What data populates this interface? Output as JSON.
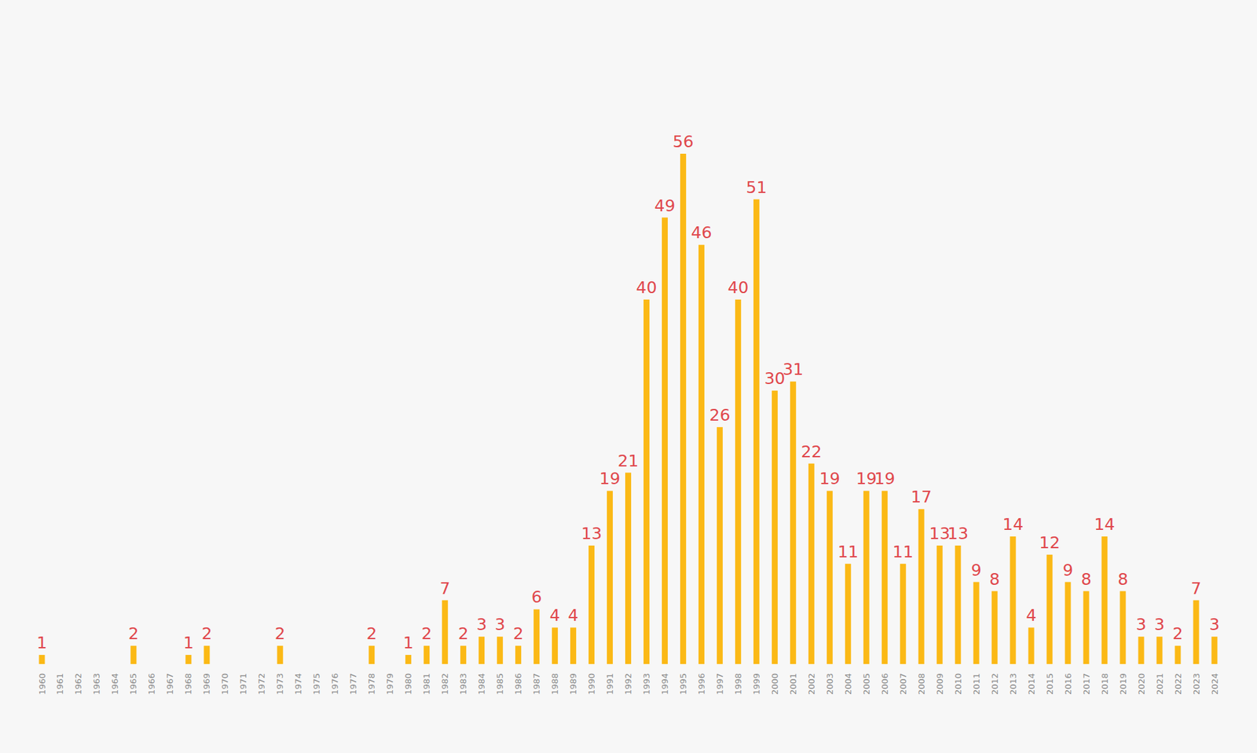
{
  "chart_data": {
    "type": "bar",
    "categories": [
      "1960",
      "1961",
      "1962",
      "1963",
      "1964",
      "1965",
      "1966",
      "1967",
      "1968",
      "1969",
      "1970",
      "1971",
      "1972",
      "1973",
      "1974",
      "1975",
      "1976",
      "1977",
      "1978",
      "1979",
      "1980",
      "1981",
      "1982",
      "1983",
      "1984",
      "1985",
      "1986",
      "1987",
      "1988",
      "1989",
      "1990",
      "1991",
      "1992",
      "1993",
      "1994",
      "1995",
      "1996",
      "1997",
      "1998",
      "1999",
      "2000",
      "2001",
      "2002",
      "2003",
      "2004",
      "2005",
      "2006",
      "2007",
      "2008",
      "2009",
      "2010",
      "2011",
      "2012",
      "2013",
      "2014",
      "2015",
      "2016",
      "2017",
      "2018",
      "2019",
      "2020",
      "2021",
      "2022",
      "2023",
      "2024"
    ],
    "values": [
      1,
      0,
      0,
      0,
      0,
      2,
      0,
      0,
      1,
      2,
      0,
      0,
      0,
      2,
      0,
      0,
      0,
      0,
      2,
      0,
      1,
      2,
      7,
      2,
      3,
      3,
      2,
      6,
      4,
      4,
      13,
      19,
      21,
      40,
      49,
      56,
      46,
      26,
      40,
      51,
      30,
      31,
      22,
      19,
      11,
      19,
      19,
      11,
      17,
      13,
      13,
      9,
      8,
      14,
      4,
      12,
      9,
      8,
      14,
      8,
      3,
      3,
      2,
      7,
      3
    ],
    "color": "#fbb916",
    "ylim": [
      0,
      56
    ],
    "data_labels": true,
    "tick_labels": "x",
    "grid": false
  }
}
